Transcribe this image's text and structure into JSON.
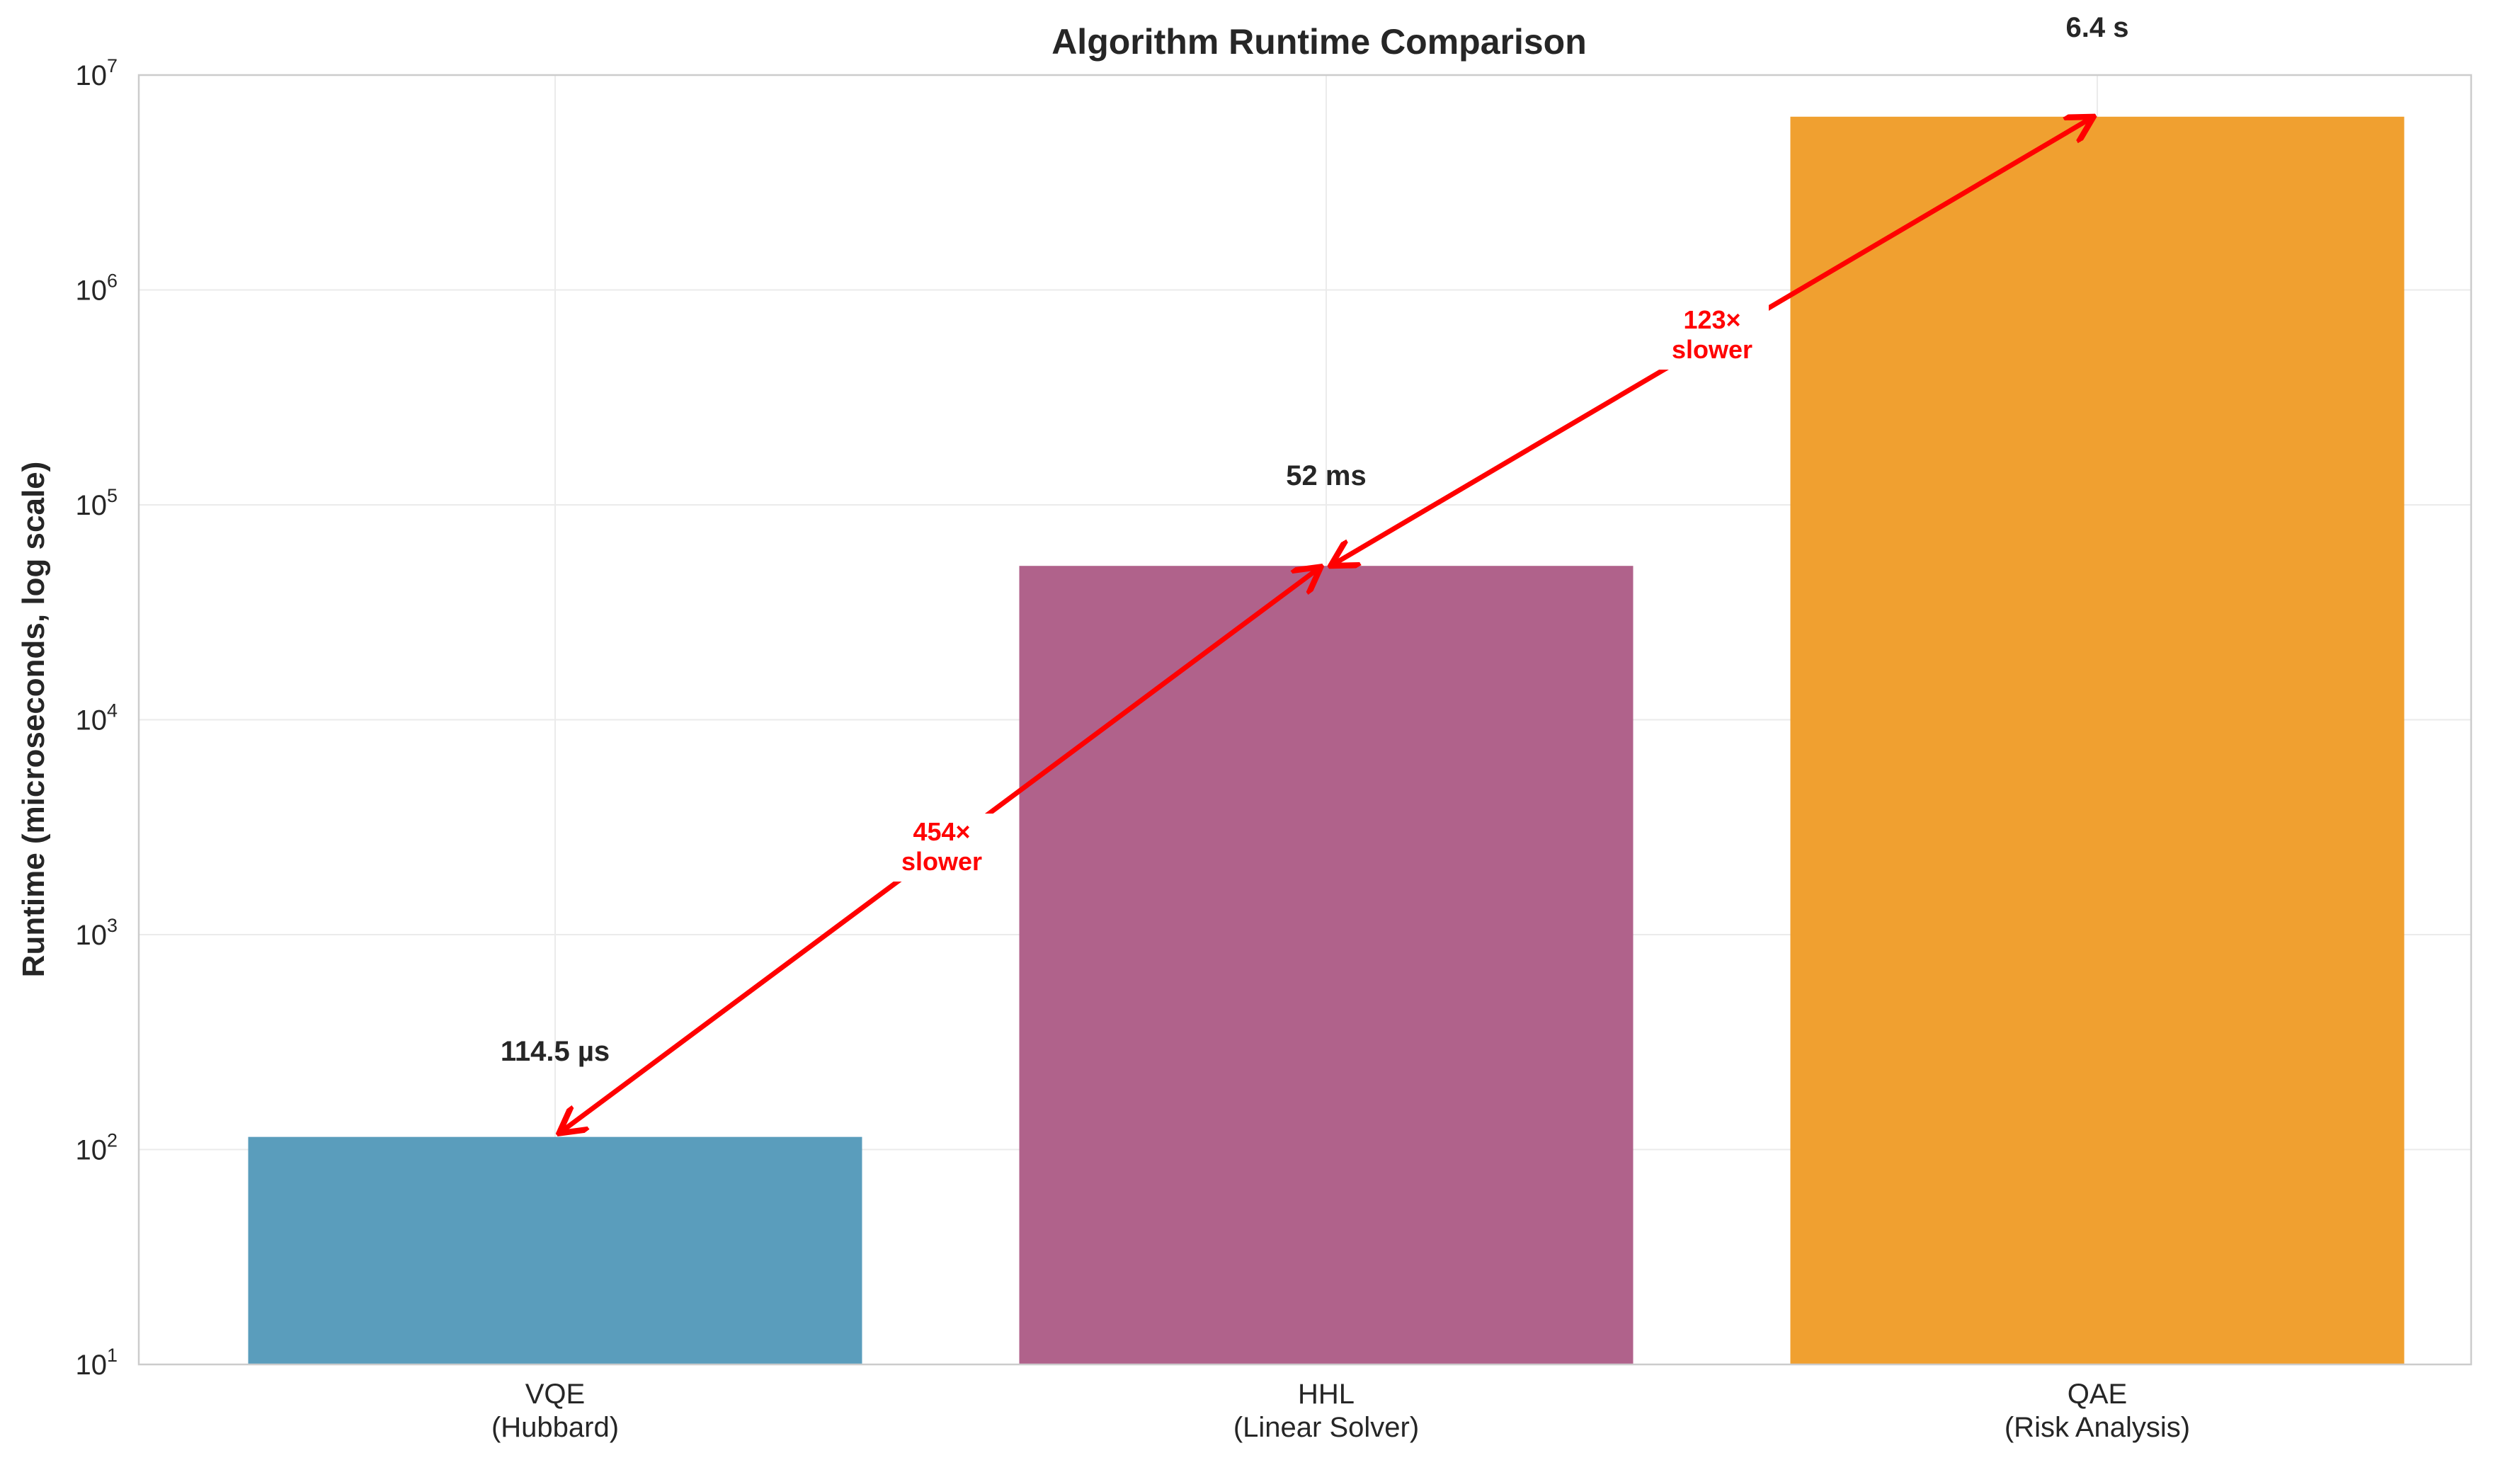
{
  "chart_data": {
    "type": "bar",
    "title": "Algorithm Runtime Comparison",
    "xlabel": "",
    "ylabel": "Runtime (microseconds, log scale)",
    "yscale": "log",
    "ylim": [
      10,
      10000000
    ],
    "grid": true,
    "legend": null,
    "categories": [
      "VQE\n(Hubbard)",
      "HHL\n(Linear Solver)",
      "QAE\n(Risk Analysis)"
    ],
    "category_lines": [
      [
        "VQE",
        "(Hubbard)"
      ],
      [
        "HHL",
        "(Linear Solver)"
      ],
      [
        "QAE",
        "(Risk Analysis)"
      ]
    ],
    "values": [
      114.5,
      52000,
      6400000
    ],
    "value_labels": [
      "114.5 µs",
      "52 ms",
      "6.4 s"
    ],
    "colors": [
      "#5a9dbc",
      "#b0628b",
      "#f0a030"
    ],
    "yticks": [
      {
        "base": "10",
        "exp": "1",
        "value": 10
      },
      {
        "base": "10",
        "exp": "2",
        "value": 100
      },
      {
        "base": "10",
        "exp": "3",
        "value": 1000
      },
      {
        "base": "10",
        "exp": "4",
        "value": 10000
      },
      {
        "base": "10",
        "exp": "5",
        "value": 100000
      },
      {
        "base": "10",
        "exp": "6",
        "value": 1000000
      },
      {
        "base": "10",
        "exp": "7",
        "value": 10000000
      }
    ],
    "annotations": [
      {
        "from": "VQE",
        "to": "HHL",
        "lines": [
          "454×",
          "slower"
        ],
        "color": "#ff0000"
      },
      {
        "from": "HHL",
        "to": "QAE",
        "lines": [
          "123×",
          "slower"
        ],
        "color": "#ff0000"
      }
    ]
  }
}
